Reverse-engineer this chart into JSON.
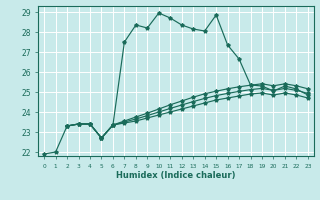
{
  "xlabel": "Humidex (Indice chaleur)",
  "bg_color": "#c8eaea",
  "grid_color": "#b8d8d8",
  "line_color": "#1a6b5a",
  "xlim": [
    -0.5,
    23.5
  ],
  "ylim": [
    21.8,
    29.3
  ],
  "yticks": [
    22,
    23,
    24,
    25,
    26,
    27,
    28,
    29
  ],
  "xticks": [
    0,
    1,
    2,
    3,
    4,
    5,
    6,
    7,
    8,
    9,
    10,
    11,
    12,
    13,
    14,
    15,
    16,
    17,
    18,
    19,
    20,
    21,
    22,
    23
  ],
  "series1_x": [
    0,
    1,
    2,
    3,
    4,
    5,
    6,
    7,
    8,
    9,
    10,
    11,
    12,
    13,
    14,
    15,
    16,
    17,
    18,
    19,
    20,
    21,
    22,
    23
  ],
  "series1_y": [
    21.9,
    22.0,
    23.3,
    23.4,
    23.4,
    22.7,
    23.35,
    27.5,
    28.35,
    28.2,
    28.95,
    28.7,
    28.35,
    28.15,
    28.05,
    28.85,
    27.35,
    26.65,
    25.35,
    25.3,
    25.05,
    25.3,
    25.15,
    24.85
  ],
  "series2_x": [
    2,
    3,
    4,
    5,
    6,
    7,
    8,
    9,
    10,
    11,
    12,
    13,
    14,
    15,
    16,
    17,
    18,
    19,
    20,
    21,
    22,
    23
  ],
  "series2_y": [
    23.3,
    23.4,
    23.4,
    22.7,
    23.35,
    23.45,
    23.55,
    23.7,
    23.85,
    24.0,
    24.15,
    24.3,
    24.45,
    24.6,
    24.7,
    24.8,
    24.9,
    24.95,
    24.85,
    24.95,
    24.85,
    24.7
  ],
  "series3_x": [
    2,
    3,
    4,
    5,
    6,
    7,
    8,
    9,
    10,
    11,
    12,
    13,
    14,
    15,
    16,
    17,
    18,
    19,
    20,
    21,
    22,
    23
  ],
  "series3_y": [
    23.3,
    23.4,
    23.4,
    22.7,
    23.35,
    23.5,
    23.65,
    23.82,
    24.0,
    24.18,
    24.35,
    24.52,
    24.68,
    24.82,
    24.93,
    25.03,
    25.12,
    25.18,
    25.08,
    25.18,
    25.08,
    24.93
  ],
  "series4_x": [
    2,
    3,
    4,
    5,
    6,
    7,
    8,
    9,
    10,
    11,
    12,
    13,
    14,
    15,
    16,
    17,
    18,
    19,
    20,
    21,
    22,
    23
  ],
  "series4_y": [
    23.3,
    23.4,
    23.4,
    22.7,
    23.35,
    23.55,
    23.75,
    23.94,
    24.15,
    24.36,
    24.55,
    24.74,
    24.91,
    25.04,
    25.16,
    25.26,
    25.34,
    25.41,
    25.31,
    25.41,
    25.31,
    25.16
  ]
}
